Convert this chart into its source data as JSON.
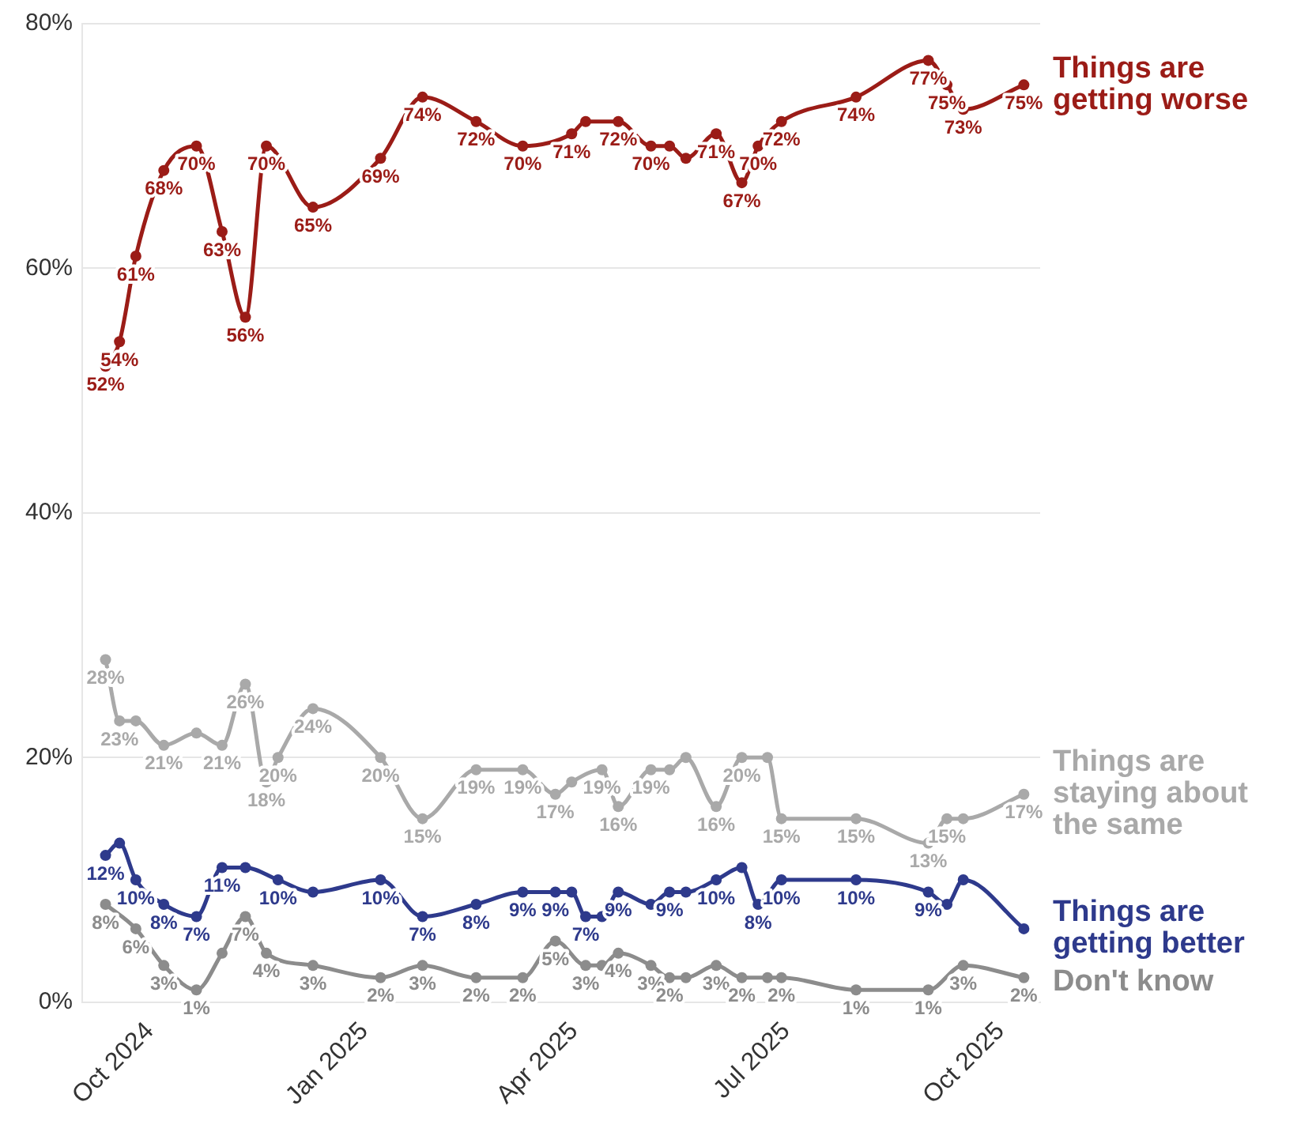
{
  "chart_data": {
    "type": "line",
    "xlim": [
      "2024-09-02",
      "2025-10-18"
    ],
    "ylim": [
      0,
      80
    ],
    "xticks": [
      {
        "value": "2024-10-01",
        "label": "Oct 2024"
      },
      {
        "value": "2025-01-01",
        "label": "Jan 2025"
      },
      {
        "value": "2025-04-01",
        "label": "Apr 2025"
      },
      {
        "value": "2025-07-01",
        "label": "Jul 2025"
      },
      {
        "value": "2025-10-01",
        "label": "Oct 2025"
      }
    ],
    "yticks": [
      {
        "value": 0,
        "label": "0%"
      },
      {
        "value": 20,
        "label": "20%"
      },
      {
        "value": 40,
        "label": "40%"
      },
      {
        "value": 60,
        "label": "60%"
      },
      {
        "value": 80,
        "label": "80%"
      }
    ],
    "grid": "y",
    "legend": false,
    "marker": "circle",
    "line_style": "solid",
    "series": [
      {
        "name": "Things are getting worse",
        "color": "#9b1c17",
        "x": [
          "2024-09-12",
          "2024-09-18",
          "2024-09-25",
          "2024-10-07",
          "2024-10-21",
          "2024-11-01",
          "2024-11-11",
          "2024-11-20",
          "2024-12-10",
          "2025-01-08",
          "2025-01-26",
          "2025-02-18",
          "2025-03-10",
          "2025-03-31",
          "2025-04-06",
          "2025-04-20",
          "2025-05-04",
          "2025-05-12",
          "2025-05-19",
          "2025-06-01",
          "2025-06-12",
          "2025-06-19",
          "2025-06-29",
          "2025-07-31",
          "2025-08-31",
          "2025-09-08",
          "2025-09-15",
          "2025-10-11"
        ],
        "values": [
          52,
          54,
          61,
          68,
          70,
          63,
          56,
          70,
          65,
          69,
          74,
          72,
          70,
          71,
          72,
          72,
          70,
          70,
          69,
          71,
          67,
          70,
          72,
          74,
          77,
          75,
          73,
          75
        ],
        "value_labels": [
          "52%",
          "54%",
          "61%",
          "68%",
          "70%",
          "63%",
          "56%",
          "70%",
          "65%",
          "69%",
          "74%",
          "72%",
          "70%",
          "71%",
          null,
          "72%",
          "70%",
          null,
          null,
          "71%",
          "67%",
          "70%",
          "72%",
          "74%",
          "77%",
          "75%",
          "73%",
          "75%"
        ]
      },
      {
        "name": "Things are staying about the same",
        "color": "#a9a9a9",
        "x": [
          "2024-09-12",
          "2024-09-18",
          "2024-09-25",
          "2024-10-07",
          "2024-10-21",
          "2024-11-01",
          "2024-11-11",
          "2024-11-20",
          "2024-11-25",
          "2024-12-10",
          "2025-01-08",
          "2025-01-26",
          "2025-02-18",
          "2025-03-10",
          "2025-03-24",
          "2025-03-31",
          "2025-04-13",
          "2025-04-20",
          "2025-05-04",
          "2025-05-12",
          "2025-05-19",
          "2025-06-01",
          "2025-06-12",
          "2025-06-23",
          "2025-06-29",
          "2025-07-31",
          "2025-08-31",
          "2025-09-08",
          "2025-09-15",
          "2025-10-11"
        ],
        "values": [
          28,
          23,
          23,
          21,
          22,
          21,
          26,
          18,
          20,
          24,
          20,
          15,
          19,
          19,
          17,
          18,
          19,
          16,
          19,
          19,
          20,
          16,
          20,
          20,
          15,
          15,
          13,
          15,
          15,
          17
        ],
        "value_labels": [
          "28%",
          "23%",
          null,
          "21%",
          null,
          "21%",
          "26%",
          "18%",
          "20%",
          "24%",
          "20%",
          "15%",
          "19%",
          "19%",
          "17%",
          null,
          "19%",
          "16%",
          "19%",
          null,
          null,
          "16%",
          "20%",
          null,
          "15%",
          "15%",
          "13%",
          "15%",
          null,
          "17%"
        ]
      },
      {
        "name": "Things are getting better",
        "color": "#2e3a8c",
        "x": [
          "2024-09-12",
          "2024-09-18",
          "2024-09-25",
          "2024-10-07",
          "2024-10-21",
          "2024-11-01",
          "2024-11-11",
          "2024-11-25",
          "2024-12-10",
          "2025-01-08",
          "2025-01-26",
          "2025-02-18",
          "2025-03-10",
          "2025-03-24",
          "2025-03-31",
          "2025-04-06",
          "2025-04-13",
          "2025-04-20",
          "2025-05-04",
          "2025-05-12",
          "2025-05-19",
          "2025-06-01",
          "2025-06-12",
          "2025-06-19",
          "2025-06-29",
          "2025-07-31",
          "2025-08-31",
          "2025-09-08",
          "2025-09-15",
          "2025-10-11"
        ],
        "values": [
          12,
          13,
          10,
          8,
          7,
          11,
          11,
          10,
          9,
          10,
          7,
          8,
          9,
          9,
          9,
          7,
          7,
          9,
          8,
          9,
          9,
          10,
          11,
          8,
          10,
          10,
          9,
          8,
          10,
          6
        ],
        "value_labels": [
          "12%",
          null,
          "10%",
          "8%",
          "7%",
          "11%",
          null,
          "10%",
          null,
          "10%",
          "7%",
          "8%",
          "9%",
          "9%",
          null,
          "7%",
          null,
          "9%",
          null,
          "9%",
          null,
          "10%",
          null,
          "8%",
          "10%",
          "10%",
          "9%",
          null,
          null,
          null
        ]
      },
      {
        "name": "Don't know",
        "color": "#8c8c8c",
        "x": [
          "2024-09-12",
          "2024-09-25",
          "2024-10-07",
          "2024-10-21",
          "2024-11-01",
          "2024-11-11",
          "2024-11-20",
          "2024-12-10",
          "2025-01-08",
          "2025-01-26",
          "2025-02-18",
          "2025-03-10",
          "2025-03-24",
          "2025-04-06",
          "2025-04-13",
          "2025-04-20",
          "2025-05-04",
          "2025-05-12",
          "2025-05-19",
          "2025-06-01",
          "2025-06-12",
          "2025-06-23",
          "2025-06-29",
          "2025-07-31",
          "2025-08-31",
          "2025-09-15",
          "2025-10-11"
        ],
        "values": [
          8,
          6,
          3,
          1,
          4,
          7,
          4,
          3,
          2,
          3,
          2,
          2,
          5,
          3,
          3,
          4,
          3,
          2,
          2,
          3,
          2,
          2,
          2,
          1,
          1,
          3,
          2
        ],
        "value_labels": [
          "8%",
          "6%",
          "3%",
          "1%",
          null,
          "7%",
          "4%",
          "3%",
          "2%",
          "3%",
          "2%",
          "2%",
          "5%",
          "3%",
          null,
          "4%",
          "3%",
          "2%",
          null,
          "3%",
          "2%",
          null,
          "2%",
          "1%",
          "1%",
          "3%",
          "2%"
        ]
      }
    ]
  }
}
